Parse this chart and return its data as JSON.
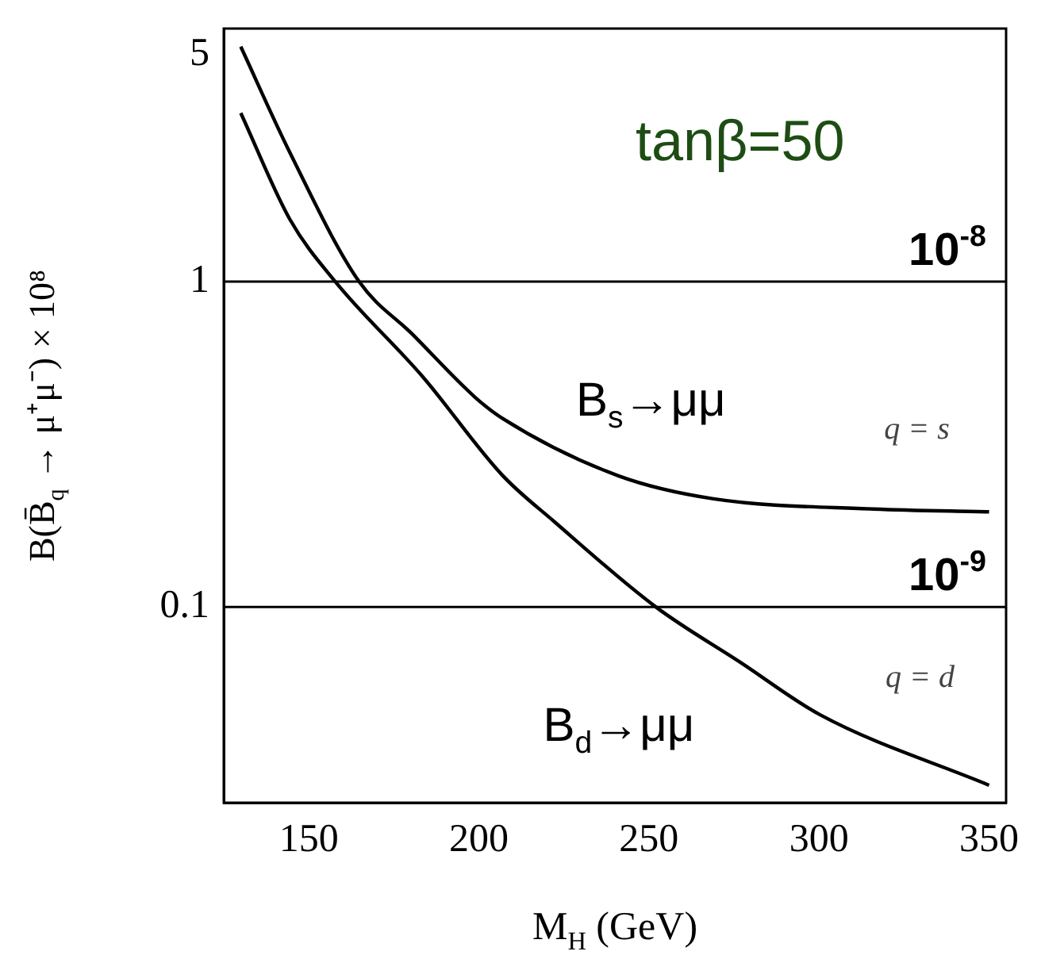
{
  "chart_data": {
    "type": "line",
    "xlabel": "M$_{H}$ (GeV)",
    "ylabel": "B(B̄$_{q}$ → μ⁺μ⁻) × 10⁸",
    "log": "y",
    "grid": false,
    "legend": false,
    "marker": "none",
    "line_style": "solid",
    "xlim": [
      125,
      355
    ],
    "xticks": [
      150,
      200,
      250,
      300,
      350
    ],
    "ylim": [
      0.025,
      6
    ],
    "yticks": [
      0.1,
      1,
      5
    ],
    "series": [
      {
        "color": "#000000",
        "x": [
          130,
          144.4,
          164.8,
          180.4,
          199,
          206.9,
          241,
          269,
          316,
          350
        ],
        "values": [
          5.28,
          2.5,
          1,
          0.69,
          0.44,
          0.38,
          0.253,
          0.215,
          0.2,
          0.196
        ]
      },
      {
        "color": "#000000",
        "x": [
          130,
          144.5,
          157.8,
          183.5,
          206.9,
          222.4,
          252,
          277,
          300.3,
          350
        ],
        "values": [
          3.3,
          1.55,
          1,
          0.51,
          0.254,
          0.182,
          0.1,
          0.0674,
          0.0466,
          0.0283
        ]
      }
    ],
    "ref_lines": [
      {
        "axis": "y",
        "value": 1,
        "color": "#000000"
      },
      {
        "axis": "y",
        "value": 0.1,
        "color": "#000000"
      }
    ],
    "annotations": [
      "tanβ=50",
      "B$_{s}$→μμ",
      "q = s",
      "B$_{d}$→μμ",
      "q = d",
      "10$^{-8}$",
      "10$^{-9}$"
    ]
  }
}
